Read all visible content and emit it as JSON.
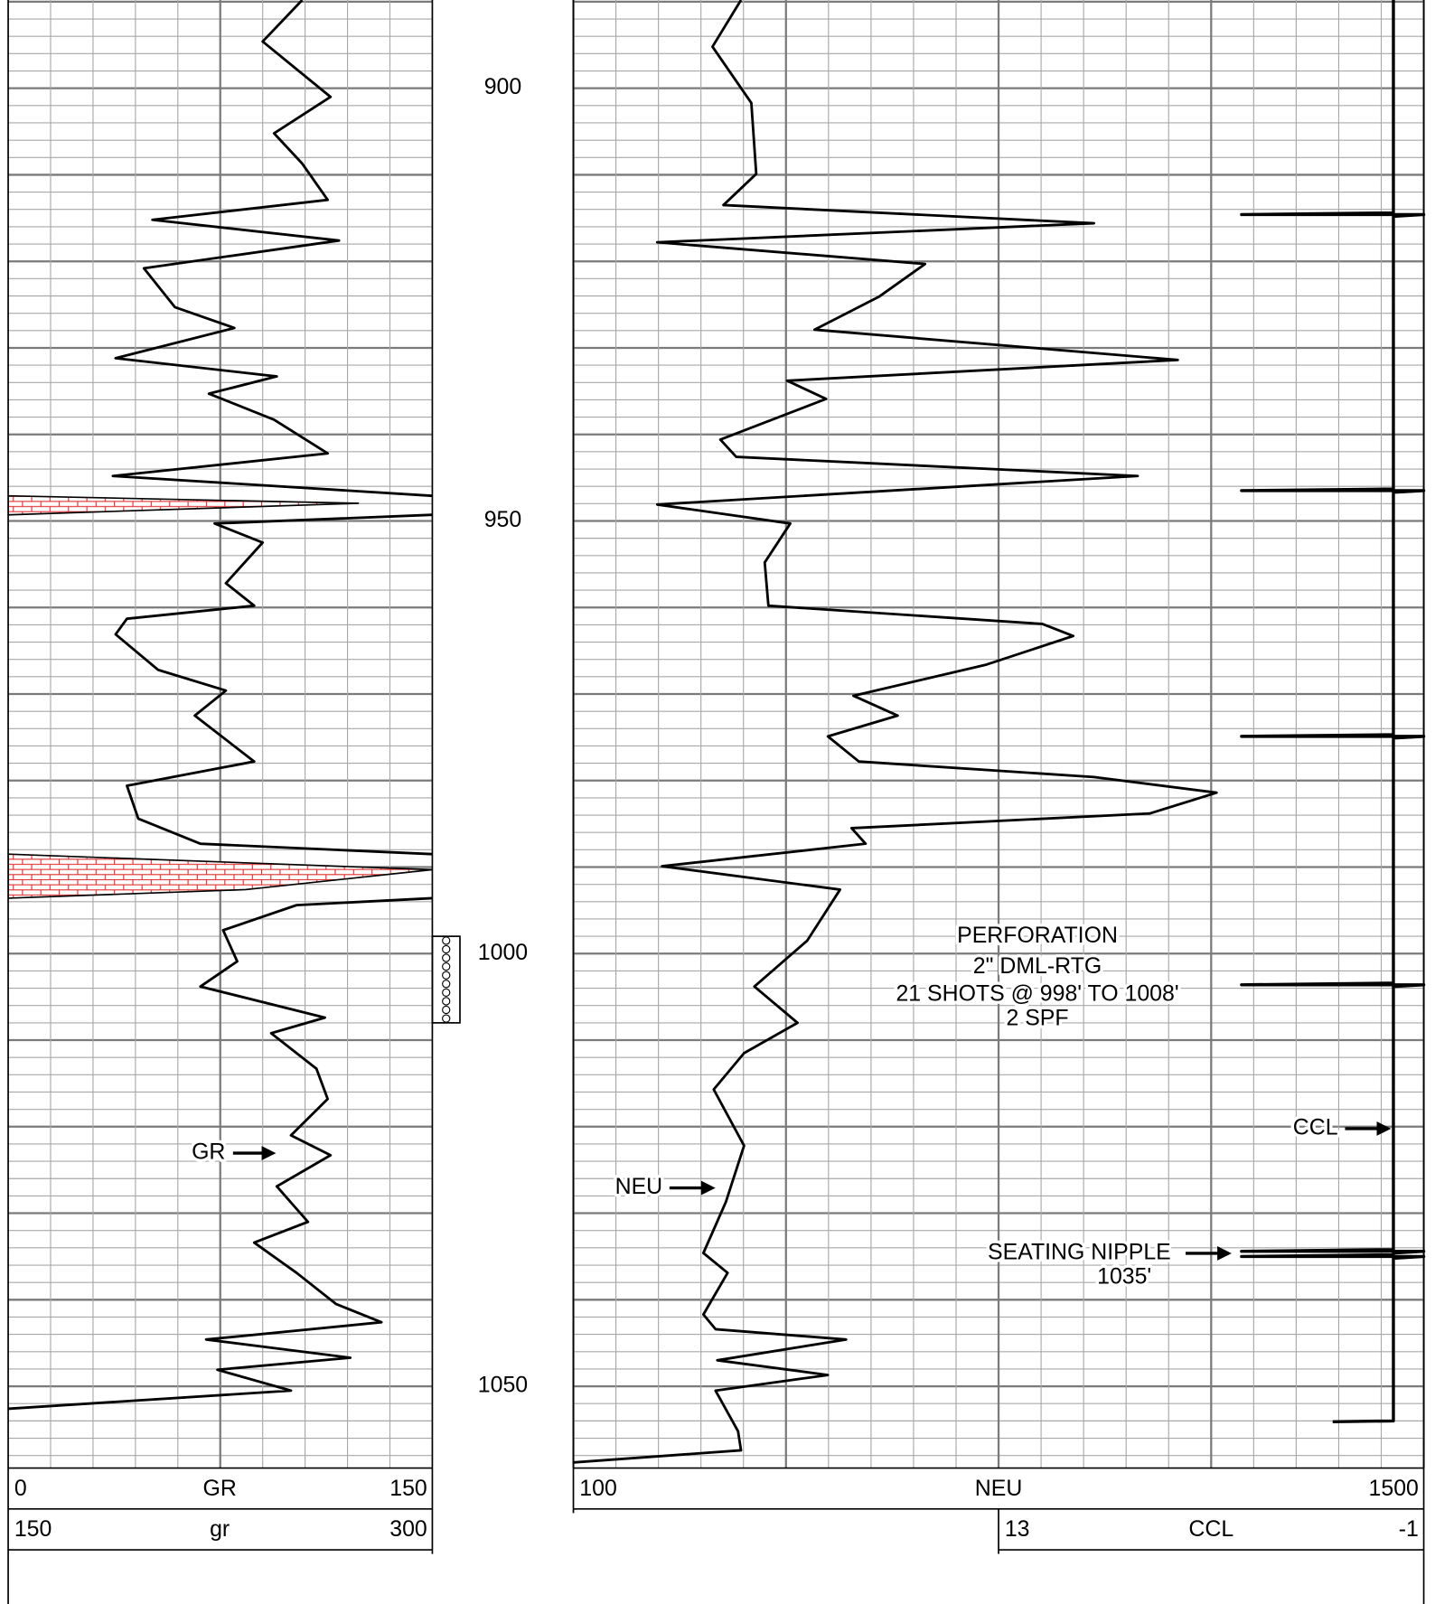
{
  "chart_data": {
    "type": "well-log",
    "ylim": [
      889.8,
      1059.4
    ],
    "yticks": [
      900,
      950,
      1000,
      1050
    ],
    "grid": true,
    "tracks": [
      {
        "name": "GR",
        "backup_name": "gr",
        "xlim": [
          0,
          150
        ],
        "backup_xlim": [
          150,
          300
        ],
        "color": "#000000",
        "backup_fill": "#e03030",
        "depth": [
          889.8,
          894.6,
          901,
          905.2,
          908.7,
          912.9,
          915.2,
          917.6,
          920.8,
          925.3,
          927.7,
          931.2,
          933.3,
          935.3,
          938.3,
          942.2,
          944.8,
          947.1,
          947.96,
          949.3,
          950.3,
          952.5,
          957.2,
          959.8,
          961.3,
          963.1,
          967.2,
          969.6,
          972.5,
          977.8,
          980.6,
          984.4,
          987.3,
          988.5,
          990.3,
          992.6,
          993.6,
          994.4,
          997.3,
          1000.9,
          1003.8,
          1007.4,
          1009.2,
          1013.3,
          1016.8,
          1021,
          1023.3,
          1026.9,
          1031,
          1033.4,
          1036.9,
          1040.5,
          1042.6,
          1044.6,
          1046.7,
          1048.1,
          1050.5,
          1052.6
        ],
        "values": [
          104,
          90,
          114,
          94,
          104,
          113,
          51,
          117,
          48,
          59,
          80,
          38,
          95,
          71,
          94,
          113,
          37,
          150,
          274,
          150,
          73,
          90,
          77,
          87,
          42,
          38,
          53,
          77,
          66,
          87,
          42,
          46,
          68,
          150,
          300,
          234,
          150,
          102,
          76,
          81,
          68,
          112,
          93,
          109,
          113,
          100,
          114,
          95,
          106,
          87,
          102,
          116,
          132,
          70,
          121,
          74,
          100,
          0
        ]
      },
      {
        "name": "NEU",
        "xlim": [
          100,
          1500
        ],
        "color": "#000000",
        "depth": [
          889.8,
          895.2,
          901.7,
          909.9,
          913.5,
          915.6,
          917.8,
          920.3,
          924.1,
          927.9,
          931.4,
          933.8,
          935.9,
          940.6,
          942.6,
          944.8,
          948.1,
          950.3,
          954.8,
          959.8,
          961.9,
          963.3,
          966.6,
          970.2,
          972.5,
          974.9,
          977.8,
          979.6,
          981.4,
          983.8,
          985.5,
          987.3,
          989.9,
          992.6,
          998.5,
          1003.8,
          1008,
          1011.5,
          1015.7,
          1022.2,
          1028.7,
          1034.6,
          1036.9,
          1041.7,
          1043.4,
          1044.6,
          1047,
          1048.7,
          1050.5,
          1055.2,
          1057.4,
          1058.8
        ],
        "values": [
          376,
          329,
          393,
          401,
          347,
          957,
          238,
          679,
          603,
          497,
          1095,
          452,
          516,
          342,
          368,
          1029,
          238,
          457,
          415,
          421,
          872,
          923,
          780,
          561,
          634,
          519,
          570,
          957,
          1159,
          1049,
          558,
          581,
          246,
          539,
          485,
          398,
          469,
          381,
          331,
          381,
          351,
          314,
          354,
          314,
          334,
          549,
          337,
          519,
          334,
          371,
          376,
          100
        ]
      },
      {
        "name": "CCL",
        "xlim": [
          13,
          -1
        ],
        "color": "#000000",
        "depth": [
          889.8,
          914.4,
          914.6,
          914.6,
          914.8,
          946.3,
          946.5,
          946.5,
          946.7,
          974.7,
          974.9,
          974.9,
          975.1,
          1003.4,
          1003.6,
          1003.6,
          1003.8,
          1034.2,
          1034.4,
          1034.4,
          1034.6,
          1034.8,
          1035.0,
          1035.0,
          1035.2,
          1054.0,
          1054.1
        ],
        "values": [
          0,
          0,
          5,
          -1,
          0,
          0,
          5,
          -1,
          0,
          0,
          5,
          -1,
          0,
          0,
          5,
          -1,
          0,
          0,
          5,
          -1,
          0,
          0,
          5,
          -1,
          0,
          0,
          2
        ]
      }
    ],
    "perforation": {
      "lines": [
        "PERFORATION",
        "2\" DML-RTG",
        "21 SHOTS @ 998' TO 1008'",
        "2 SPF"
      ],
      "top": 998,
      "bottom": 1008
    },
    "seating_nipple": {
      "lines": [
        "SEATING NIPPLE",
        "1035'"
      ]
    }
  }
}
